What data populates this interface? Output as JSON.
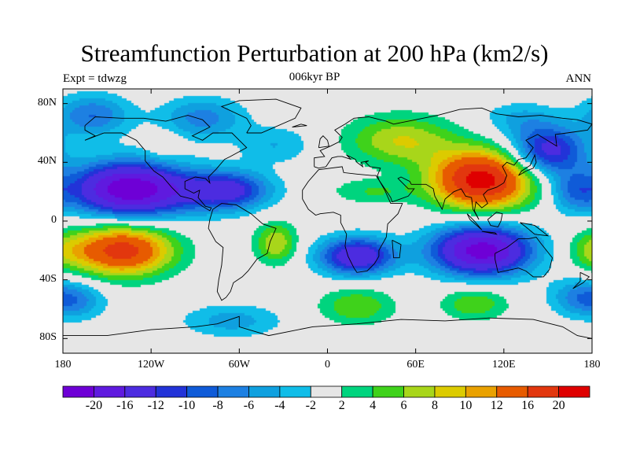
{
  "figure": {
    "title": "Streamfunction Perturbation at 200 hPa (km2/s)",
    "left_label": "Expt = tdwzg",
    "center_label": "006kyr BP",
    "right_label": "ANN"
  },
  "map": {
    "type": "filled-contour",
    "projection": "cylindrical-equidistant",
    "lon_range": [
      -180,
      180
    ],
    "lat_range": [
      -90,
      90
    ],
    "lat_ticks": [
      {
        "value": 80,
        "label": "80N"
      },
      {
        "value": 40,
        "label": "40N"
      },
      {
        "value": 0,
        "label": "0"
      },
      {
        "value": -40,
        "label": "40S"
      },
      {
        "value": -80,
        "label": "80S"
      }
    ],
    "lon_ticks": [
      {
        "value": -180,
        "label": "180"
      },
      {
        "value": -120,
        "label": "120W"
      },
      {
        "value": -60,
        "label": "60W"
      },
      {
        "value": 0,
        "label": "0"
      },
      {
        "value": 60,
        "label": "60E"
      },
      {
        "value": 120,
        "label": "120E"
      },
      {
        "value": 180,
        "label": "180"
      }
    ],
    "features": [
      {
        "lon": -138,
        "lat": 22,
        "value": -20,
        "sx": 26,
        "sy": 13
      },
      {
        "lon": -67,
        "lat": 21,
        "value": -12,
        "sx": 20,
        "sy": 9
      },
      {
        "lon": -105,
        "lat": 20,
        "value": -6,
        "sx": 30,
        "sy": 12
      },
      {
        "lon": -160,
        "lat": 72,
        "value": -8,
        "sx": 18,
        "sy": 10
      },
      {
        "lon": -85,
        "lat": 70,
        "value": -7,
        "sx": 20,
        "sy": 10
      },
      {
        "lon": -35,
        "lat": 52,
        "value": -4,
        "sx": 18,
        "sy": 9
      },
      {
        "lon": 150,
        "lat": 48,
        "value": -14,
        "sx": 18,
        "sy": 12
      },
      {
        "lon": 168,
        "lat": 20,
        "value": -7,
        "sx": 12,
        "sy": 10
      },
      {
        "lon": 105,
        "lat": -20,
        "value": -22,
        "sx": 24,
        "sy": 12
      },
      {
        "lon": 20,
        "lat": -24,
        "value": -16,
        "sx": 18,
        "sy": 9
      },
      {
        "lon": -170,
        "lat": -54,
        "value": -6,
        "sx": 14,
        "sy": 9
      },
      {
        "lon": 170,
        "lat": -52,
        "value": -6,
        "sx": 14,
        "sy": 9
      },
      {
        "lon": -65,
        "lat": -68,
        "value": -5,
        "sx": 24,
        "sy": 8
      },
      {
        "lon": 130,
        "lat": 70,
        "value": -4,
        "sx": 18,
        "sy": 8
      },
      {
        "lon": 105,
        "lat": 28,
        "value": 22,
        "sx": 24,
        "sy": 14
      },
      {
        "lon": 50,
        "lat": 55,
        "value": 8,
        "sx": 26,
        "sy": 12
      },
      {
        "lon": 30,
        "lat": 20,
        "value": 4,
        "sx": 20,
        "sy": 6
      },
      {
        "lon": -140,
        "lat": -20,
        "value": 18,
        "sx": 24,
        "sy": 12
      },
      {
        "lon": -35,
        "lat": -15,
        "value": 8,
        "sx": 10,
        "sy": 10
      },
      {
        "lon": 20,
        "lat": -58,
        "value": 6,
        "sx": 18,
        "sy": 9
      },
      {
        "lon": 100,
        "lat": -56,
        "value": 6,
        "sx": 16,
        "sy": 8
      },
      {
        "lon": -110,
        "lat": 52,
        "value": 3,
        "sx": 8,
        "sy": 6
      },
      {
        "lon": 180,
        "lat": -20,
        "value": 4,
        "sx": 12,
        "sy": 9
      },
      {
        "lon": 0,
        "lat": 0,
        "value": 0,
        "sx": 10,
        "sy": 10
      }
    ]
  },
  "colorbar": {
    "levels": [
      -24,
      -20,
      -16,
      -12,
      -10,
      -8,
      -6,
      -4,
      -2,
      2,
      4,
      6,
      8,
      10,
      12,
      16,
      20,
      24
    ],
    "labels": [
      "-20",
      "-16",
      "-12",
      "-10",
      "-8",
      "-6",
      "-4",
      "-2",
      "2",
      "4",
      "6",
      "8",
      "10",
      "12",
      "16",
      "20"
    ],
    "colors": [
      "#6e00d6",
      "#5f1adf",
      "#4c2ce0",
      "#2233d8",
      "#0f5bd8",
      "#1d80e2",
      "#0fa0df",
      "#10bde8",
      "#e6e6e6",
      "#00d47e",
      "#3fd21b",
      "#a8d61a",
      "#dccb00",
      "#e9a100",
      "#e75b00",
      "#e2370e",
      "#df0000"
    ]
  },
  "coastlines": [
    [
      [
        -165,
        65
      ],
      [
        -158,
        71
      ],
      [
        -140,
        70
      ],
      [
        -125,
        70
      ],
      [
        -110,
        68
      ],
      [
        -95,
        72
      ],
      [
        -85,
        69
      ],
      [
        -80,
        64
      ],
      [
        -92,
        58
      ],
      [
        -85,
        55
      ],
      [
        -78,
        60
      ],
      [
        -65,
        60
      ],
      [
        -60,
        55
      ],
      [
        -55,
        50
      ],
      [
        -66,
        44
      ],
      [
        -70,
        42
      ],
      [
        -76,
        35
      ],
      [
        -81,
        30
      ],
      [
        -80,
        26
      ],
      [
        -83,
        29
      ],
      [
        -90,
        30
      ],
      [
        -97,
        27
      ],
      [
        -97,
        22
      ],
      [
        -91,
        19
      ],
      [
        -87,
        21
      ],
      [
        -88,
        16
      ],
      [
        -83,
        10
      ],
      [
        -79,
        9
      ],
      [
        -80,
        7
      ],
      [
        -85,
        10
      ],
      [
        -92,
        15
      ],
      [
        -100,
        17
      ],
      [
        -106,
        23
      ],
      [
        -112,
        30
      ],
      [
        -118,
        34
      ],
      [
        -124,
        41
      ],
      [
        -124,
        48
      ],
      [
        -130,
        55
      ],
      [
        -140,
        60
      ],
      [
        -152,
        60
      ],
      [
        -165,
        55
      ],
      [
        -158,
        58
      ],
      [
        -165,
        62
      ],
      [
        -165,
        65
      ]
    ],
    [
      [
        -78,
        8
      ],
      [
        -72,
        12
      ],
      [
        -62,
        11
      ],
      [
        -52,
        5
      ],
      [
        -44,
        -2
      ],
      [
        -35,
        -5
      ],
      [
        -39,
        -14
      ],
      [
        -41,
        -22
      ],
      [
        -48,
        -26
      ],
      [
        -54,
        -34
      ],
      [
        -58,
        -38
      ],
      [
        -64,
        -42
      ],
      [
        -66,
        -48
      ],
      [
        -69,
        -52
      ],
      [
        -72,
        -54
      ],
      [
        -75,
        -48
      ],
      [
        -74,
        -40
      ],
      [
        -72,
        -30
      ],
      [
        -71,
        -18
      ],
      [
        -76,
        -14
      ],
      [
        -81,
        -5
      ],
      [
        -80,
        1
      ],
      [
        -78,
        8
      ]
    ],
    [
      [
        -17,
        15
      ],
      [
        -17,
        21
      ],
      [
        -13,
        27
      ],
      [
        -6,
        35
      ],
      [
        10,
        37
      ],
      [
        11,
        33
      ],
      [
        20,
        32
      ],
      [
        30,
        31
      ],
      [
        33,
        31
      ],
      [
        35,
        28
      ],
      [
        39,
        21
      ],
      [
        43,
        12
      ],
      [
        51,
        12
      ],
      [
        48,
        5
      ],
      [
        41,
        -2
      ],
      [
        40,
        -11
      ],
      [
        35,
        -20
      ],
      [
        35,
        -24
      ],
      [
        32,
        -29
      ],
      [
        27,
        -34
      ],
      [
        20,
        -35
      ],
      [
        18,
        -32
      ],
      [
        14,
        -24
      ],
      [
        12,
        -17
      ],
      [
        13,
        -9
      ],
      [
        9,
        -1
      ],
      [
        9,
        4
      ],
      [
        4,
        6
      ],
      [
        -5,
        5
      ],
      [
        -8,
        4
      ],
      [
        -13,
        8
      ],
      [
        -17,
        15
      ]
    ],
    [
      [
        -9,
        37
      ],
      [
        -9,
        43
      ],
      [
        -2,
        44
      ],
      [
        -5,
        48
      ],
      [
        2,
        51
      ],
      [
        8,
        54
      ],
      [
        10,
        57
      ],
      [
        5,
        62
      ],
      [
        12,
        66
      ],
      [
        18,
        70
      ],
      [
        28,
        71
      ],
      [
        40,
        68
      ],
      [
        45,
        66
      ],
      [
        55,
        68
      ],
      [
        65,
        70
      ],
      [
        75,
        72
      ],
      [
        90,
        76
      ],
      [
        105,
        77
      ],
      [
        115,
        73
      ],
      [
        130,
        71
      ],
      [
        145,
        72
      ],
      [
        160,
        70
      ],
      [
        170,
        69
      ],
      [
        180,
        66
      ],
      [
        177,
        62
      ],
      [
        163,
        60
      ],
      [
        155,
        59
      ],
      [
        156,
        51
      ],
      [
        143,
        59
      ],
      [
        135,
        55
      ],
      [
        140,
        50
      ],
      [
        135,
        43
      ],
      [
        130,
        42
      ],
      [
        127,
        38
      ],
      [
        122,
        40
      ],
      [
        119,
        37
      ],
      [
        122,
        31
      ],
      [
        120,
        26
      ],
      [
        115,
        23
      ],
      [
        109,
        21
      ],
      [
        106,
        18
      ],
      [
        109,
        12
      ],
      [
        105,
        9
      ],
      [
        101,
        13
      ],
      [
        100,
        7
      ],
      [
        103,
        1
      ],
      [
        99,
        8
      ],
      [
        98,
        16
      ],
      [
        94,
        17
      ],
      [
        91,
        22
      ],
      [
        86,
        20
      ],
      [
        80,
        15
      ],
      [
        78,
        8
      ],
      [
        73,
        17
      ],
      [
        72,
        22
      ],
      [
        67,
        25
      ],
      [
        57,
        25
      ],
      [
        56,
        27
      ],
      [
        50,
        30
      ],
      [
        48,
        29
      ],
      [
        55,
        22
      ],
      [
        59,
        22
      ],
      [
        55,
        17
      ],
      [
        44,
        13
      ],
      [
        43,
        16
      ],
      [
        39,
        22
      ],
      [
        35,
        28
      ],
      [
        34,
        31
      ],
      [
        36,
        36
      ],
      [
        29,
        37
      ],
      [
        26,
        40
      ],
      [
        28,
        41
      ],
      [
        23,
        40
      ],
      [
        24,
        37
      ],
      [
        20,
        40
      ],
      [
        19,
        42
      ],
      [
        13,
        45
      ],
      [
        16,
        42
      ],
      [
        10,
        44
      ],
      [
        7,
        44
      ],
      [
        3,
        43
      ],
      [
        -1,
        37
      ],
      [
        -6,
        36
      ],
      [
        -9,
        37
      ]
    ],
    [
      [
        -55,
        60
      ],
      [
        -45,
        60
      ],
      [
        -22,
        70
      ],
      [
        -18,
        77
      ],
      [
        -35,
        83
      ],
      [
        -60,
        82
      ],
      [
        -72,
        78
      ],
      [
        -55,
        70
      ],
      [
        -52,
        65
      ],
      [
        -55,
        60
      ]
    ],
    [
      [
        114,
        -22
      ],
      [
        122,
        -18
      ],
      [
        130,
        -12
      ],
      [
        137,
        -12
      ],
      [
        142,
        -11
      ],
      [
        145,
        -15
      ],
      [
        153,
        -25
      ],
      [
        151,
        -33
      ],
      [
        147,
        -38
      ],
      [
        140,
        -38
      ],
      [
        135,
        -34
      ],
      [
        130,
        -32
      ],
      [
        116,
        -35
      ],
      [
        114,
        -26
      ],
      [
        114,
        -22
      ]
    ],
    [
      [
        -180,
        -78
      ],
      [
        -150,
        -78
      ],
      [
        -120,
        -74
      ],
      [
        -90,
        -72
      ],
      [
        -75,
        -70
      ],
      [
        -60,
        -65
      ],
      [
        -60,
        -72
      ],
      [
        -40,
        -78
      ],
      [
        -10,
        -72
      ],
      [
        20,
        -70
      ],
      [
        50,
        -67
      ],
      [
        80,
        -68
      ],
      [
        110,
        -66
      ],
      [
        140,
        -67
      ],
      [
        160,
        -72
      ],
      [
        170,
        -78
      ],
      [
        180,
        -80
      ]
    ],
    [
      [
        95,
        5
      ],
      [
        100,
        0
      ],
      [
        105,
        -6
      ],
      [
        97,
        1
      ],
      [
        95,
        5
      ]
    ],
    [
      [
        105,
        -7
      ],
      [
        114,
        -8
      ],
      [
        115,
        -9
      ],
      [
        105,
        -7
      ]
    ],
    [
      [
        109,
        1
      ],
      [
        115,
        6
      ],
      [
        119,
        5
      ],
      [
        118,
        0
      ],
      [
        116,
        -4
      ],
      [
        111,
        -3
      ],
      [
        109,
        1
      ]
    ],
    [
      [
        131,
        -1
      ],
      [
        141,
        -3
      ],
      [
        150,
        -10
      ],
      [
        141,
        -9
      ],
      [
        135,
        -4
      ],
      [
        131,
        -1
      ]
    ],
    [
      [
        130,
        31
      ],
      [
        135,
        34
      ],
      [
        140,
        36
      ],
      [
        142,
        40
      ],
      [
        141,
        45
      ],
      [
        138,
        38
      ],
      [
        132,
        34
      ],
      [
        130,
        31
      ]
    ],
    [
      [
        -6,
        50
      ],
      [
        1,
        51
      ],
      [
        0,
        55
      ],
      [
        -3,
        58
      ],
      [
        -5,
        56
      ],
      [
        -6,
        50
      ]
    ],
    [
      [
        -24,
        64
      ],
      [
        -14,
        65
      ],
      [
        -18,
        66
      ],
      [
        -24,
        64
      ]
    ],
    [
      [
        44,
        -13
      ],
      [
        50,
        -16
      ],
      [
        49,
        -25
      ],
      [
        45,
        -25
      ],
      [
        44,
        -13
      ]
    ],
    [
      [
        172,
        -35
      ],
      [
        178,
        -38
      ],
      [
        174,
        -42
      ],
      [
        167,
        -46
      ],
      [
        172,
        -41
      ],
      [
        172,
        -35
      ]
    ]
  ]
}
